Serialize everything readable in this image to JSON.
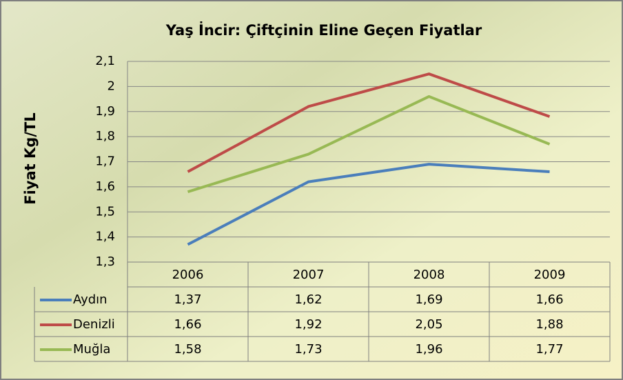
{
  "chart_data": {
    "type": "line",
    "title": "Yaş İncir: Çiftçinin Eline Geçen Fiyatlar",
    "y_label": "Fiyat Kg/TL",
    "categories": [
      "2006",
      "2007",
      "2008",
      "2009"
    ],
    "series": [
      {
        "name": "Aydın",
        "color": "#4a7ebb",
        "values": [
          1.37,
          1.62,
          1.69,
          1.66
        ],
        "value_labels": [
          "1,37",
          "1,62",
          "1,69",
          "1,66"
        ]
      },
      {
        "name": "Denizli",
        "color": "#be4b48",
        "values": [
          1.66,
          1.92,
          2.05,
          1.88
        ],
        "value_labels": [
          "1,66",
          "1,92",
          "2,05",
          "1,88"
        ]
      },
      {
        "name": "Muğla",
        "color": "#98b954",
        "values": [
          1.58,
          1.73,
          1.96,
          1.77
        ],
        "value_labels": [
          "1,58",
          "1,73",
          "1,96",
          "1,77"
        ]
      }
    ],
    "ylim": [
      1.3,
      2.1
    ],
    "yticks": [
      {
        "value": 1.3,
        "label": "1,3"
      },
      {
        "value": 1.4,
        "label": "1,4"
      },
      {
        "value": 1.5,
        "label": "1,5"
      },
      {
        "value": 1.6,
        "label": "1,6"
      },
      {
        "value": 1.7,
        "label": "1,7"
      },
      {
        "value": 1.8,
        "label": "1,8"
      },
      {
        "value": 1.9,
        "label": "1,9"
      },
      2,
      {
        "value": 2.1,
        "label": "2,1"
      }
    ],
    "grid": true
  }
}
